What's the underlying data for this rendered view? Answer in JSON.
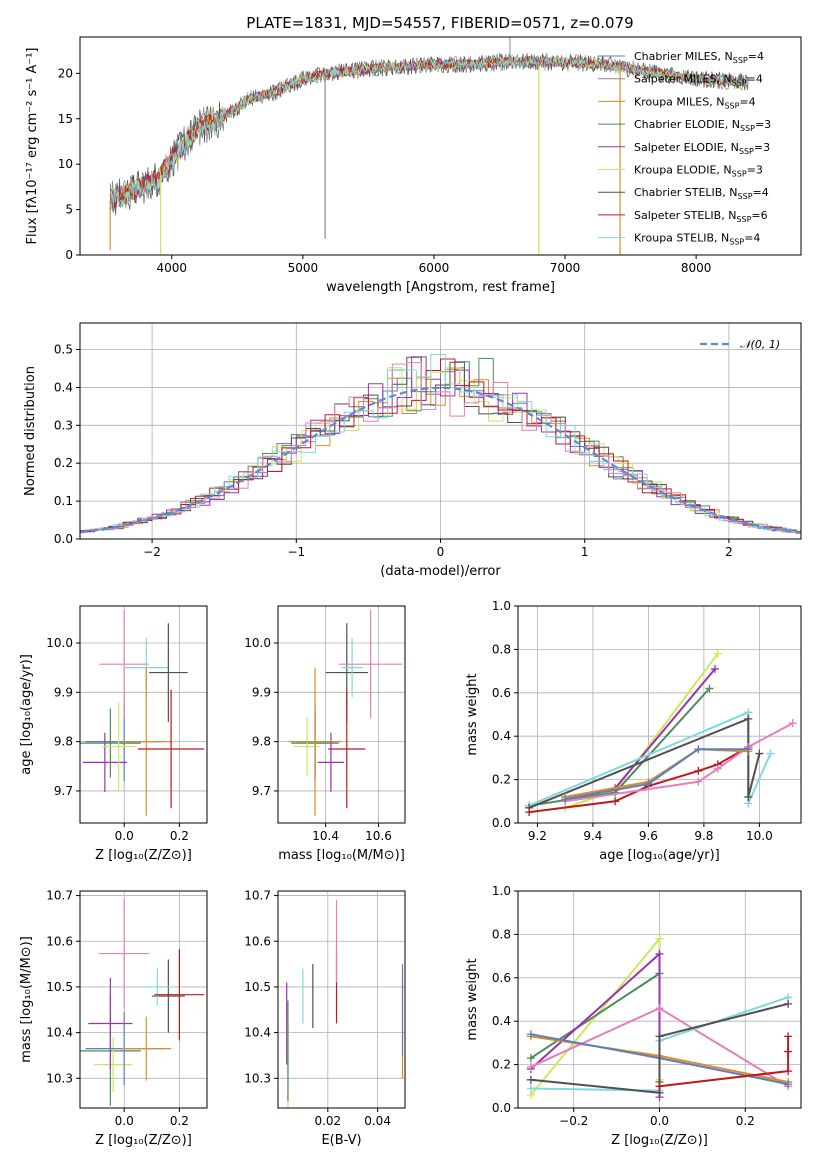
{
  "figure_title": "PLATE=1831, MJD=54557, FIBERID=0571, z=0.079",
  "colors": {
    "Chabrier MILES": "#5a7fbf",
    "Salpeter MILES": "#8a8a8a",
    "Kroupa MILES": "#e08a2c",
    "Chabrier ELODIE": "#4e8a5c",
    "Salpeter ELODIE": "#9b30b0",
    "Kroupa ELODIE": "#c9e85a",
    "Chabrier STELIB": "#505050",
    "Salpeter STELIB": "#c0191c",
    "Kroupa STELIB": "#7fd8dc",
    "pink": "#e67fb9",
    "gauss": "#5b8ad8"
  },
  "chart_data": [
    {
      "id": "spectrum",
      "type": "line",
      "xlabel": "wavelength [Angstrom, rest frame]",
      "ylabel": "Flux [fλ10⁻¹⁷ erg cm⁻² s⁻¹ A⁻¹]",
      "xlim": [
        3300,
        8800
      ],
      "ylim": [
        0,
        24
      ],
      "xticks": [
        4000,
        5000,
        6000,
        7000,
        8000
      ],
      "yticks": [
        0,
        5,
        10,
        15,
        20
      ],
      "grid": false,
      "legend_position": "top-right",
      "legend": [
        {
          "pre": "Chabrier MILES, N",
          "sub": "SSP",
          "post": "=4"
        },
        {
          "pre": "Salpeter MILES, N",
          "sub": "SSP",
          "post": "=4"
        },
        {
          "pre": "Kroupa MILES, N",
          "sub": "SSP",
          "post": "=4"
        },
        {
          "pre": "Chabrier ELODIE, N",
          "sub": "SSP",
          "post": "=3"
        },
        {
          "pre": "Salpeter ELODIE, N",
          "sub": "SSP",
          "post": "=3"
        },
        {
          "pre": "Kroupa ELODIE, N",
          "sub": "SSP",
          "post": "=3"
        },
        {
          "pre": "Chabrier STELIB, N",
          "sub": "SSP",
          "post": "=4"
        },
        {
          "pre": "Salpeter STELIB, N",
          "sub": "SSP",
          "post": "=6"
        },
        {
          "pre": "Kroupa STELIB, N",
          "sub": "SSP",
          "post": "=4"
        }
      ],
      "continuum": [
        [
          3530,
          6
        ],
        [
          3700,
          7
        ],
        [
          3900,
          8.5
        ],
        [
          4000,
          10.5
        ],
        [
          4200,
          14
        ],
        [
          4350,
          14.8
        ],
        [
          4600,
          17.2
        ],
        [
          4800,
          18
        ],
        [
          5000,
          19.4
        ],
        [
          5200,
          20
        ],
        [
          5500,
          20.5
        ],
        [
          6000,
          21
        ],
        [
          6300,
          21
        ],
        [
          6600,
          21.3
        ],
        [
          7000,
          21.2
        ],
        [
          7300,
          21
        ],
        [
          7500,
          20.5
        ],
        [
          7800,
          19.8
        ],
        [
          8100,
          19.3
        ],
        [
          8400,
          19
        ]
      ],
      "dips": [
        [
          3530,
          0.5
        ],
        [
          3915,
          0
        ],
        [
          5170,
          1.8
        ],
        [
          6800,
          0
        ],
        [
          7420,
          0
        ]
      ],
      "spike": [
        6580,
        24
      ]
    },
    {
      "id": "residuals",
      "type": "bar",
      "xlabel": "(data-model)/error",
      "ylabel": "Normed distribution",
      "xlim": [
        -2.5,
        2.5
      ],
      "ylim": [
        0,
        0.57
      ],
      "xticks": [
        -2,
        -1,
        0,
        1,
        2
      ],
      "xtick_labels": [
        "−2",
        "−1",
        "0",
        "1",
        "2"
      ],
      "yticks": [
        0.0,
        0.1,
        0.2,
        0.3,
        0.4,
        0.5
      ],
      "grid": true,
      "legend": "𝒩(0, 1)",
      "legend_position": "top-right",
      "bin_width": 0.1
    },
    {
      "id": "age_vs_Z",
      "type": "scatter",
      "xlabel": "Z [log₁₀(Z/Z⊙)]",
      "ylabel": "age  [log₁₀(age/yr)]",
      "xlim": [
        -0.16,
        0.3
      ],
      "ylim": [
        9.635,
        10.075
      ],
      "xticks": [
        0.0,
        0.2
      ],
      "yticks": [
        9.7,
        9.8,
        9.9,
        10.0
      ],
      "grid": true,
      "points": [
        {
          "c": "Chabrier MILES",
          "x": 0.0,
          "y": 9.8,
          "xe": 0.14,
          "ye": 0.08
        },
        {
          "c": "Salpeter ELODIE",
          "x": -0.07,
          "y": 9.758,
          "xe": 0.08,
          "ye": 0.06
        },
        {
          "c": "Chabrier ELODIE",
          "x": -0.05,
          "y": 9.797,
          "xe": 0.11,
          "ye": 0.07
        },
        {
          "c": "Kroupa ELODIE",
          "x": -0.02,
          "y": 9.79,
          "xe": 0.06,
          "ye": 0.09
        },
        {
          "c": "pink",
          "x": 0.0,
          "y": 9.957,
          "xe": 0.09,
          "ye": 0.11
        },
        {
          "c": "Kroupa STELIB",
          "x": 0.08,
          "y": 9.95,
          "xe": 0.08,
          "ye": 0.06
        },
        {
          "c": "Chabrier STELIB",
          "x": 0.16,
          "y": 9.94,
          "xe": 0.07,
          "ye": 0.1
        },
        {
          "c": "Kroupa MILES",
          "x": 0.08,
          "y": 9.8,
          "xe": 0.09,
          "ye": 0.15
        },
        {
          "c": "Salpeter STELIB",
          "x": 0.17,
          "y": 9.785,
          "xe": 0.12,
          "ye": 0.12
        }
      ]
    },
    {
      "id": "age_vs_mass",
      "type": "scatter",
      "xlabel": "mass [log₁₀(M/M⊙)]",
      "xlim": [
        10.22,
        10.7
      ],
      "ylim": [
        9.635,
        10.075
      ],
      "xticks": [
        10.4,
        10.6
      ],
      "yticks": [
        9.7,
        9.8,
        9.9,
        10.0
      ],
      "grid": true,
      "points": [
        {
          "c": "Chabrier MILES",
          "x": 10.36,
          "y": 9.8,
          "xe": 0.07,
          "ye": 0.08
        },
        {
          "c": "Chabrier ELODIE",
          "x": 10.36,
          "y": 9.797,
          "xe": 0.09,
          "ye": 0.07
        },
        {
          "c": "Kroupa ELODIE",
          "x": 10.33,
          "y": 9.79,
          "xe": 0.05,
          "ye": 0.06
        },
        {
          "c": "Salpeter ELODIE",
          "x": 10.42,
          "y": 9.758,
          "xe": 0.05,
          "ye": 0.06
        },
        {
          "c": "Kroupa MILES",
          "x": 10.36,
          "y": 9.8,
          "xe": 0.1,
          "ye": 0.15
        },
        {
          "c": "Chabrier STELIB",
          "x": 10.48,
          "y": 9.94,
          "xe": 0.08,
          "ye": 0.1
        },
        {
          "c": "Kroupa STELIB",
          "x": 10.5,
          "y": 9.95,
          "xe": 0.04,
          "ye": 0.06
        },
        {
          "c": "pink",
          "x": 10.57,
          "y": 9.957,
          "xe": 0.12,
          "ye": 0.11
        },
        {
          "c": "Salpeter STELIB",
          "x": 10.48,
          "y": 9.785,
          "xe": 0.07,
          "ye": 0.12
        }
      ]
    },
    {
      "id": "massweight_vs_age",
      "type": "line",
      "xlabel": "age  [log₁₀(age/yr)]",
      "ylabel": "mass weight",
      "xlim": [
        9.13,
        10.15
      ],
      "ylim": [
        0,
        1
      ],
      "xticks": [
        9.2,
        9.4,
        9.6,
        9.8,
        10.0
      ],
      "yticks": [
        0.0,
        0.2,
        0.4,
        0.6,
        0.8,
        1.0
      ],
      "grid": true,
      "series": [
        {
          "c": "Kroupa ELODIE",
          "pts": [
            [
              9.3,
              0.07
            ],
            [
              9.48,
              0.15
            ],
            [
              9.85,
              0.78
            ]
          ]
        },
        {
          "c": "Salpeter ELODIE",
          "pts": [
            [
              9.3,
              0.12
            ],
            [
              9.48,
              0.16
            ],
            [
              9.84,
              0.71
            ]
          ]
        },
        {
          "c": "Chabrier ELODIE",
          "pts": [
            [
              9.17,
              0.08
            ],
            [
              9.48,
              0.14
            ],
            [
              9.82,
              0.62
            ]
          ]
        },
        {
          "c": "Kroupa STELIB",
          "pts": [
            [
              9.17,
              0.08
            ],
            [
              9.96,
              0.51
            ],
            [
              9.96,
              0.09
            ],
            [
              10.04,
              0.32
            ]
          ]
        },
        {
          "c": "Chabrier STELIB",
          "pts": [
            [
              9.17,
              0.07
            ],
            [
              9.96,
              0.48
            ],
            [
              9.96,
              0.12
            ],
            [
              10.0,
              0.32
            ]
          ]
        },
        {
          "c": "Salpeter STELIB",
          "pts": [
            [
              9.17,
              0.05
            ],
            [
              9.48,
              0.1
            ],
            [
              9.6,
              0.17
            ],
            [
              9.78,
              0.24
            ],
            [
              9.85,
              0.27
            ],
            [
              9.96,
              0.35
            ],
            [
              9.96,
              0.34
            ]
          ]
        },
        {
          "c": "pink",
          "pts": [
            [
              9.3,
              0.1
            ],
            [
              9.78,
              0.19
            ],
            [
              9.85,
              0.25
            ],
            [
              9.96,
              0.35
            ],
            [
              10.12,
              0.46
            ]
          ]
        },
        {
          "c": "Kroupa MILES",
          "pts": [
            [
              9.3,
              0.12
            ],
            [
              9.6,
              0.19
            ],
            [
              9.78,
              0.34
            ],
            [
              9.96,
              0.33
            ]
          ]
        },
        {
          "c": "Chabrier MILES",
          "pts": [
            [
              9.3,
              0.11
            ],
            [
              9.6,
              0.18
            ],
            [
              9.78,
              0.34
            ],
            [
              9.96,
              0.34
            ]
          ]
        }
      ]
    },
    {
      "id": "mass_vs_Z",
      "type": "scatter",
      "xlabel": "Z [log₁₀(Z/Z⊙)]",
      "ylabel": "mass [log₁₀(M/M⊙)]",
      "xlim": [
        -0.16,
        0.3
      ],
      "ylim": [
        10.235,
        10.71
      ],
      "xticks": [
        0.0,
        0.2
      ],
      "yticks": [
        10.3,
        10.4,
        10.5,
        10.6,
        10.7
      ],
      "grid": true,
      "points": [
        {
          "c": "Chabrier ELODIE",
          "x": -0.05,
          "y": 10.36,
          "xe": 0.11,
          "ye": 0.12
        },
        {
          "c": "Kroupa ELODIE",
          "x": -0.04,
          "y": 10.33,
          "xe": 0.07,
          "ye": 0.06
        },
        {
          "c": "Salpeter ELODIE",
          "x": -0.05,
          "y": 10.42,
          "xe": 0.08,
          "ye": 0.1
        },
        {
          "c": "Chabrier MILES",
          "x": 0.0,
          "y": 10.365,
          "xe": 0.14,
          "ye": 0.08
        },
        {
          "c": "pink",
          "x": 0.0,
          "y": 10.573,
          "xe": 0.09,
          "ye": 0.12
        },
        {
          "c": "Kroupa MILES",
          "x": 0.08,
          "y": 10.365,
          "xe": 0.09,
          "ye": 0.07
        },
        {
          "c": "Chabrier STELIB",
          "x": 0.16,
          "y": 10.48,
          "xe": 0.06,
          "ye": 0.08
        },
        {
          "c": "Kroupa STELIB",
          "x": 0.12,
          "y": 10.5,
          "xe": 0.05,
          "ye": 0.04
        },
        {
          "c": "Salpeter STELIB",
          "x": 0.2,
          "y": 10.483,
          "xe": 0.09,
          "ye": 0.1
        }
      ]
    },
    {
      "id": "mass_vs_EBV",
      "type": "scatter",
      "xlabel": "E(B-V)",
      "xlim": [
        0.0,
        0.051
      ],
      "ylim": [
        10.235,
        10.71
      ],
      "xticks": [
        0.02,
        0.04
      ],
      "yticks": [
        10.3,
        10.4,
        10.5,
        10.6,
        10.7
      ],
      "grid": true,
      "points": [
        {
          "c": "Salpeter ELODIE",
          "x": 0.0035,
          "y": 10.42,
          "ye": 0.09
        },
        {
          "c": "Kroupa ELODIE",
          "x": 0.004,
          "y": 10.33,
          "ye": 0.1
        },
        {
          "c": "Chabrier ELODIE",
          "x": 0.004,
          "y": 10.36,
          "ye": 0.11
        },
        {
          "c": "Kroupa STELIB",
          "x": 0.01,
          "y": 10.48,
          "ye": 0.06
        },
        {
          "c": "Chabrier STELIB",
          "x": 0.014,
          "y": 10.48,
          "ye": 0.07
        },
        {
          "c": "Salpeter STELIB",
          "x": 0.0235,
          "y": 10.5,
          "ye": 0.08
        },
        {
          "c": "pink",
          "x": 0.0235,
          "y": 10.6,
          "ye": 0.09
        },
        {
          "c": "Kroupa MILES",
          "x": 0.05,
          "y": 10.42,
          "ye": 0.12
        },
        {
          "c": "Chabrier MILES",
          "x": 0.05,
          "y": 10.45,
          "ye": 0.1
        }
      ]
    },
    {
      "id": "massweight_vs_Z",
      "type": "line",
      "xlabel": "Z [log₁₀(Z/Z⊙)]",
      "ylabel": "mass weight",
      "xlim": [
        -0.33,
        0.33
      ],
      "ylim": [
        0,
        1
      ],
      "xticks": [
        -0.2,
        0.0,
        0.2
      ],
      "xtick_labels": [
        "−0.2",
        "0.0",
        "0.2"
      ],
      "yticks": [
        0.0,
        0.2,
        0.4,
        0.6,
        0.8,
        1.0
      ],
      "grid": true,
      "series": [
        {
          "c": "Kroupa ELODIE",
          "pts": [
            [
              -0.3,
              0.06
            ],
            [
              0.0,
              0.78
            ],
            [
              0.0,
              0.13
            ]
          ]
        },
        {
          "c": "Chabrier ELODIE",
          "pts": [
            [
              -0.3,
              0.23
            ],
            [
              0.0,
              0.62
            ],
            [
              0.0,
              0.12
            ]
          ]
        },
        {
          "c": "Salpeter ELODIE",
          "pts": [
            [
              -0.3,
              0.18
            ],
            [
              0.0,
              0.71
            ],
            [
              0.0,
              0.05
            ]
          ]
        },
        {
          "c": "pink",
          "pts": [
            [
              -0.3,
              0.19
            ],
            [
              0.0,
              0.46
            ],
            [
              0.3,
              0.1
            ],
            [
              0.3,
              0.12
            ]
          ]
        },
        {
          "c": "Kroupa MILES",
          "pts": [
            [
              -0.3,
              0.33
            ],
            [
              0.0,
              0.24
            ],
            [
              0.3,
              0.12
            ]
          ]
        },
        {
          "c": "Chabrier MILES",
          "pts": [
            [
              -0.3,
              0.34
            ],
            [
              0.0,
              0.23
            ],
            [
              0.3,
              0.11
            ]
          ]
        },
        {
          "c": "Kroupa STELIB",
          "pts": [
            [
              -0.3,
              0.09
            ],
            [
              0.0,
              0.08
            ],
            [
              0.0,
              0.31
            ],
            [
              0.3,
              0.51
            ]
          ]
        },
        {
          "c": "Chabrier STELIB",
          "pts": [
            [
              -0.3,
              0.13
            ],
            [
              0.0,
              0.07
            ],
            [
              0.0,
              0.33
            ],
            [
              0.3,
              0.48
            ]
          ]
        },
        {
          "c": "Salpeter STELIB",
          "pts": [
            [
              0.0,
              0.1
            ],
            [
              0.3,
              0.17
            ],
            [
              0.3,
              0.33
            ],
            [
              0.3,
              0.26
            ]
          ]
        }
      ]
    }
  ]
}
